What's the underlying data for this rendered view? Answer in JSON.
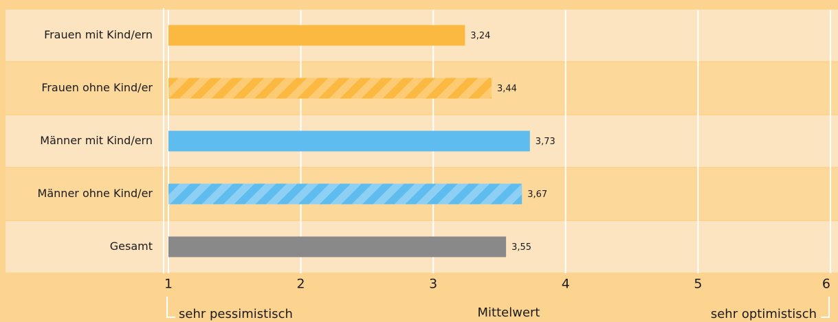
{
  "chart_data": {
    "type": "bar",
    "orientation": "horizontal",
    "categories": [
      "Frauen mit Kind/ern",
      "Frauen ohne Kind/er",
      "Männer mit Kind/ern",
      "Männer ohne Kind/er",
      "Gesamt"
    ],
    "values": [
      3.24,
      3.44,
      3.73,
      3.67,
      3.55
    ],
    "value_labels": [
      "3,24",
      "3,44",
      "3,73",
      "3,67",
      "3,55"
    ],
    "colors": [
      "#fbb941",
      "#fbb941",
      "#5ebdee",
      "#5ebdee",
      "#898989"
    ],
    "hatched": [
      false,
      true,
      false,
      true,
      false
    ],
    "xlim": [
      1,
      6
    ],
    "xticks": [
      1,
      2,
      3,
      4,
      5,
      6
    ],
    "grid": true,
    "annotations": [
      "sehr pessimistisch",
      "Mittelwert",
      "sehr optimistisch"
    ]
  }
}
